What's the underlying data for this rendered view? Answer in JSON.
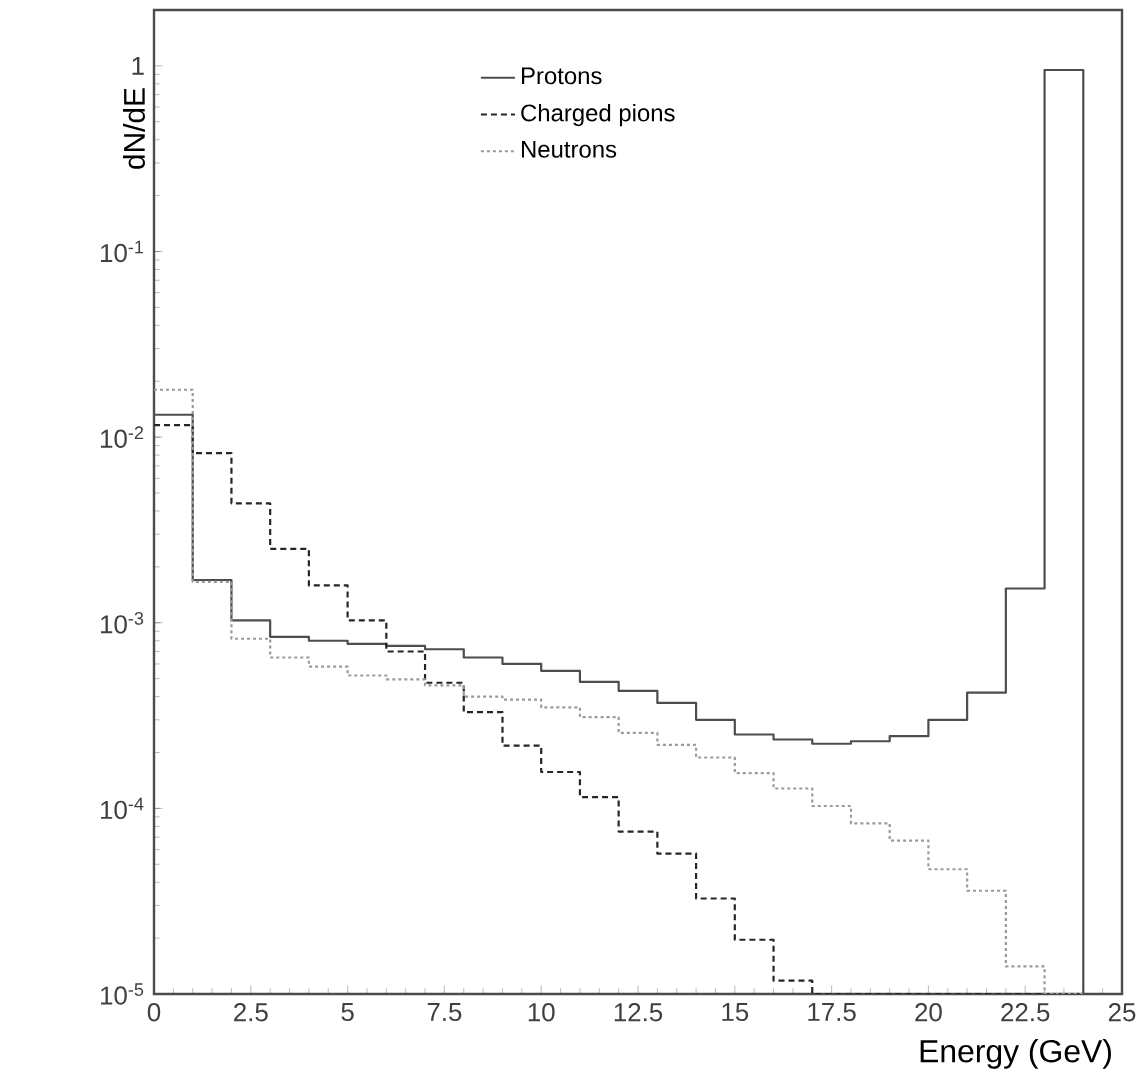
{
  "chart_data": {
    "type": "histogram",
    "xlabel": "Energy (GeV)",
    "ylabel": "dN/dE",
    "bins": [
      0,
      1,
      2,
      3,
      4,
      5,
      6,
      7,
      8,
      9,
      10,
      11,
      12,
      13,
      14,
      15,
      16,
      17,
      18,
      19,
      20,
      21,
      22,
      23,
      24
    ],
    "series": [
      {
        "name": "Protons",
        "color": "#4d4d4d",
        "line_style": "solid",
        "values": [
          0.0132,
          0.0017,
          0.00103,
          0.00084,
          0.0008,
          0.00077,
          0.00075,
          0.00072,
          0.00065,
          0.0006,
          0.00055,
          0.00048,
          0.00043,
          0.00037,
          0.0003,
          0.00025,
          0.000235,
          0.000223,
          0.00023,
          0.000245,
          0.0003,
          0.00042,
          0.00153,
          0.95
        ]
      },
      {
        "name": "Charged pions",
        "color": "#262626",
        "line_style": "dashed",
        "values": [
          0.0116,
          0.0082,
          0.0044,
          0.0025,
          0.00159,
          0.00103,
          0.0007,
          0.000475,
          0.00033,
          0.000218,
          0.000157,
          0.000115,
          7.5e-05,
          5.7e-05,
          3.27e-05,
          1.96e-05,
          1.18e-05,
          null,
          null,
          null,
          null,
          null,
          null,
          null
        ]
      },
      {
        "name": "Neutrons",
        "color": "#9a9a9a",
        "line_style": "dotted",
        "values": [
          0.018,
          0.00166,
          0.00082,
          0.00065,
          0.00058,
          0.00052,
          0.000495,
          0.00046,
          0.0004,
          0.000385,
          0.00035,
          0.00031,
          0.000255,
          0.00022,
          0.000188,
          0.000155,
          0.000128,
          0.000103,
          8.3e-05,
          6.7e-05,
          4.7e-05,
          3.6e-05,
          1.41e-05,
          null
        ]
      }
    ],
    "log": "y",
    "xlim": [
      0,
      25
    ],
    "ylim": [
      1e-05,
      2
    ],
    "xticks": [
      0,
      2.5,
      5,
      7.5,
      10,
      12.5,
      15,
      17.5,
      20,
      22.5,
      25
    ],
    "yticks": [
      {
        "value": 1e-05,
        "label": "10$^{-5}$"
      },
      {
        "value": 0.0001,
        "label": "10$^{-4}$"
      },
      {
        "value": 0.001,
        "label": "10$^{-3}$"
      },
      {
        "value": 0.01,
        "label": "10$^{-2}$"
      },
      {
        "value": 0.1,
        "label": "10$^{-1}$"
      },
      1
    ],
    "legend": "top",
    "grid": false
  }
}
